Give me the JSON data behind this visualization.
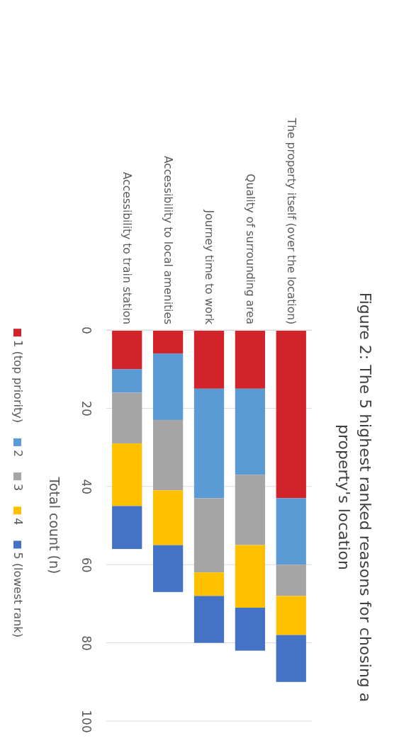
{
  "chart_data": {
    "type": "bar",
    "stacked": true,
    "title": "Figure 2: The 5 highest ranked reasons for chosing a property's location",
    "ylabel": "Total count (n)",
    "categories": [
      "Accessibility to train station",
      "Accessibility to local amenities",
      "Journey time to work",
      "Quality of surrounding area",
      "The property itself (over the location)"
    ],
    "series": [
      {
        "name": "1 (top priority)",
        "color": "#d2232a",
        "values": [
          10,
          6,
          15,
          15,
          43
        ]
      },
      {
        "name": "2",
        "color": "#5b9bd5",
        "values": [
          6,
          17,
          28,
          22,
          17
        ]
      },
      {
        "name": "3",
        "color": "#a5a5a5",
        "values": [
          13,
          18,
          19,
          18,
          8
        ]
      },
      {
        "name": "4",
        "color": "#ffc000",
        "values": [
          16,
          14,
          6,
          16,
          10
        ]
      },
      {
        "name": "5 (lowest rank)",
        "color": "#4472c4",
        "values": [
          11,
          12,
          12,
          11,
          12
        ]
      }
    ],
    "ylim": [
      100,
      0
    ],
    "yticks": [
      0,
      20,
      40,
      60,
      80,
      100
    ],
    "grid": "y",
    "legend": "left"
  }
}
